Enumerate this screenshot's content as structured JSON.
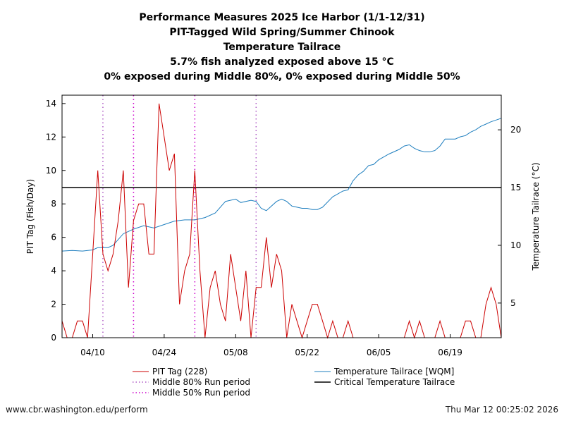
{
  "chart_data": {
    "type": "line",
    "title_lines": [
      "Performance Measures 2025 Ice Harbor (1/1-12/31)",
      "PIT-Tagged Wild Spring/Summer Chinook",
      "Temperature Tailrace",
      "5.7% fish analyzed exposed above 15 °C",
      "0% exposed during Middle 80%, 0% exposed during Middle 50%"
    ],
    "ylabel_left": "PIT Tag (Fish/Day)",
    "ylabel_right": "Temperature Tailrace (°C)",
    "x_range_day": [
      0,
      86
    ],
    "x_ticks": [
      {
        "day": 6,
        "label": "04/10"
      },
      {
        "day": 20,
        "label": "04/24"
      },
      {
        "day": 34,
        "label": "05/08"
      },
      {
        "day": 48,
        "label": "05/22"
      },
      {
        "day": 62,
        "label": "06/05"
      },
      {
        "day": 76,
        "label": "06/19"
      }
    ],
    "ylim_left": [
      0,
      14.5
    ],
    "yticks_left": [
      0,
      2,
      4,
      6,
      8,
      10,
      12,
      14
    ],
    "ylim_right": [
      2,
      23
    ],
    "yticks_right": [
      5,
      10,
      15,
      20
    ],
    "critical_temperature": 15,
    "middle_80_days": [
      8,
      38
    ],
    "middle_50_days": [
      14,
      26
    ],
    "colors": {
      "pit": "#cc0000",
      "temperature": "#1f7fbf",
      "critical": "#000000",
      "mid80": "#b05fc7",
      "mid50": "#cc00cc"
    },
    "pit_series": {
      "name": "PIT Tag (228)",
      "points": [
        [
          0,
          1
        ],
        [
          1,
          0
        ],
        [
          2,
          0
        ],
        [
          3,
          1
        ],
        [
          4,
          1
        ],
        [
          5,
          0
        ],
        [
          6,
          5
        ],
        [
          7,
          10
        ],
        [
          8,
          5
        ],
        [
          9,
          4
        ],
        [
          10,
          5
        ],
        [
          11,
          7
        ],
        [
          12,
          10
        ],
        [
          13,
          3
        ],
        [
          14,
          7
        ],
        [
          15,
          8
        ],
        [
          16,
          8
        ],
        [
          17,
          5
        ],
        [
          18,
          5
        ],
        [
          19,
          14
        ],
        [
          20,
          12
        ],
        [
          21,
          10
        ],
        [
          22,
          11
        ],
        [
          23,
          2
        ],
        [
          24,
          4
        ],
        [
          25,
          5
        ],
        [
          26,
          10
        ],
        [
          27,
          4
        ],
        [
          28,
          0
        ],
        [
          29,
          3
        ],
        [
          30,
          4
        ],
        [
          31,
          2
        ],
        [
          32,
          1
        ],
        [
          33,
          5
        ],
        [
          34,
          3
        ],
        [
          35,
          1
        ],
        [
          36,
          4
        ],
        [
          37,
          0
        ],
        [
          38,
          3
        ],
        [
          39,
          3
        ],
        [
          40,
          6
        ],
        [
          41,
          3
        ],
        [
          42,
          5
        ],
        [
          43,
          4
        ],
        [
          44,
          0
        ],
        [
          45,
          2
        ],
        [
          46,
          1
        ],
        [
          47,
          0
        ],
        [
          48,
          1
        ],
        [
          49,
          2
        ],
        [
          50,
          2
        ],
        [
          51,
          1
        ],
        [
          52,
          0
        ],
        [
          53,
          1
        ],
        [
          54,
          0
        ],
        [
          55,
          0
        ],
        [
          56,
          1
        ],
        [
          57,
          0
        ],
        [
          58,
          0
        ],
        [
          62,
          0
        ],
        [
          67,
          0
        ],
        [
          68,
          1
        ],
        [
          69,
          0
        ],
        [
          70,
          1
        ],
        [
          71,
          0
        ],
        [
          73,
          0
        ],
        [
          74,
          1
        ],
        [
          75,
          0
        ],
        [
          78,
          0
        ],
        [
          79,
          1
        ],
        [
          80,
          1
        ],
        [
          81,
          0
        ],
        [
          82,
          0
        ],
        [
          83,
          2
        ],
        [
          84,
          3
        ],
        [
          85,
          2
        ],
        [
          86,
          0
        ],
        [
          86,
          1
        ]
      ]
    },
    "temperature_series": {
      "name": "Temperature Tailrace [WQM]",
      "points": [
        [
          0,
          9.5
        ],
        [
          2,
          9.55
        ],
        [
          4,
          9.5
        ],
        [
          6,
          9.6
        ],
        [
          7,
          9.8
        ],
        [
          9,
          9.8
        ],
        [
          10,
          10.0
        ],
        [
          12,
          11.0
        ],
        [
          14,
          11.4
        ],
        [
          16,
          11.7
        ],
        [
          18,
          11.5
        ],
        [
          20,
          11.8
        ],
        [
          22,
          12.1
        ],
        [
          24,
          12.2
        ],
        [
          26,
          12.2
        ],
        [
          28,
          12.4
        ],
        [
          30,
          12.8
        ],
        [
          32,
          13.8
        ],
        [
          34,
          14.0
        ],
        [
          35,
          13.7
        ],
        [
          37,
          13.9
        ],
        [
          38,
          13.8
        ],
        [
          39,
          13.2
        ],
        [
          40,
          13.0
        ],
        [
          42,
          13.8
        ],
        [
          43,
          14.0
        ],
        [
          44,
          13.8
        ],
        [
          45,
          13.4
        ],
        [
          47,
          13.2
        ],
        [
          48,
          13.2
        ],
        [
          49,
          13.1
        ],
        [
          50,
          13.1
        ],
        [
          51,
          13.3
        ],
        [
          53,
          14.2
        ],
        [
          55,
          14.7
        ],
        [
          56,
          14.8
        ],
        [
          57,
          15.6
        ],
        [
          58,
          16.1
        ],
        [
          59,
          16.4
        ],
        [
          60,
          16.9
        ],
        [
          61,
          17.0
        ],
        [
          62,
          17.4
        ],
        [
          64,
          17.9
        ],
        [
          66,
          18.3
        ],
        [
          67,
          18.6
        ],
        [
          68,
          18.7
        ],
        [
          69,
          18.4
        ],
        [
          70,
          18.2
        ],
        [
          71,
          18.1
        ],
        [
          72,
          18.1
        ],
        [
          73,
          18.2
        ],
        [
          74,
          18.6
        ],
        [
          75,
          19.2
        ],
        [
          76,
          19.2
        ],
        [
          77,
          19.2
        ],
        [
          78,
          19.4
        ],
        [
          79,
          19.5
        ],
        [
          80,
          19.8
        ],
        [
          81,
          20.0
        ],
        [
          82,
          20.3
        ],
        [
          83,
          20.5
        ],
        [
          84,
          20.7
        ],
        [
          86,
          21.0
        ]
      ]
    },
    "legend": {
      "pit": "PIT Tag (228)",
      "mid80": "Middle 80% Run period",
      "mid50": "Middle 50% Run period",
      "temperature": "Temperature Tailrace [WQM]",
      "critical": "Critical Temperature Tailrace"
    }
  },
  "footer": {
    "left": "www.cbr.washington.edu/perform",
    "right": "Thu Mar 12 00:25:02 2026"
  }
}
